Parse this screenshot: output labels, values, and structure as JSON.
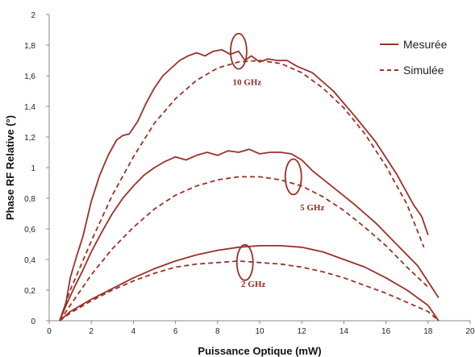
{
  "chart_data": {
    "type": "line",
    "xlabel": "Puissance Optique (mW)",
    "ylabel": "Phase RF Relative (°)",
    "xlim": [
      0,
      20
    ],
    "ylim": [
      0,
      2
    ],
    "x_ticks": [
      "0",
      "2",
      "4",
      "6",
      "8",
      "10",
      "12",
      "14",
      "16",
      "18",
      "20"
    ],
    "y_ticks": [
      "0",
      "0,2",
      "0,4",
      "0,6",
      "0,8",
      "1",
      "1,2",
      "1,4",
      "1,6",
      "1,8",
      "2"
    ],
    "legend": [
      {
        "label": "Mesurée",
        "style": "solid"
      },
      {
        "label": "Simulée",
        "style": "dashed"
      }
    ],
    "legend_position": "top-right",
    "grid": false,
    "color": "#9a3128",
    "series": [
      {
        "group": "10 GHz",
        "style": "solid",
        "points": [
          [
            0.5,
            0
          ],
          [
            0.8,
            0.12
          ],
          [
            1,
            0.28
          ],
          [
            1.3,
            0.42
          ],
          [
            1.6,
            0.55
          ],
          [
            2,
            0.78
          ],
          [
            2.4,
            0.95
          ],
          [
            2.8,
            1.08
          ],
          [
            3.2,
            1.18
          ],
          [
            3.5,
            1.21
          ],
          [
            3.8,
            1.22
          ],
          [
            4.2,
            1.3
          ],
          [
            4.6,
            1.42
          ],
          [
            5,
            1.52
          ],
          [
            5.4,
            1.6
          ],
          [
            5.8,
            1.65
          ],
          [
            6.2,
            1.7
          ],
          [
            6.6,
            1.73
          ],
          [
            7,
            1.75
          ],
          [
            7.4,
            1.73
          ],
          [
            7.8,
            1.76
          ],
          [
            8.2,
            1.77
          ],
          [
            8.6,
            1.74
          ],
          [
            9,
            1.76
          ],
          [
            9.3,
            1.7
          ],
          [
            9.6,
            1.73
          ],
          [
            10,
            1.69
          ],
          [
            10.4,
            1.71
          ],
          [
            10.8,
            1.7
          ],
          [
            11.3,
            1.7
          ],
          [
            11.8,
            1.66
          ],
          [
            12.5,
            1.62
          ],
          [
            13.5,
            1.5
          ],
          [
            14.5,
            1.34
          ],
          [
            15.5,
            1.17
          ],
          [
            16.5,
            0.96
          ],
          [
            17.3,
            0.76
          ],
          [
            17.7,
            0.68
          ],
          [
            18,
            0.56
          ]
        ]
      },
      {
        "group": "10 GHz",
        "style": "dashed",
        "points": [
          [
            0.5,
            0
          ],
          [
            1,
            0.2
          ],
          [
            2,
            0.52
          ],
          [
            3,
            0.82
          ],
          [
            4,
            1.07
          ],
          [
            5,
            1.29
          ],
          [
            6,
            1.45
          ],
          [
            7,
            1.57
          ],
          [
            8,
            1.65
          ],
          [
            9,
            1.69
          ],
          [
            10,
            1.7
          ],
          [
            11,
            1.68
          ],
          [
            12,
            1.62
          ],
          [
            13,
            1.52
          ],
          [
            14,
            1.39
          ],
          [
            15,
            1.22
          ],
          [
            16,
            1.01
          ],
          [
            17,
            0.76
          ],
          [
            17.8,
            0.48
          ]
        ]
      },
      {
        "group": "5 GHz",
        "style": "solid",
        "points": [
          [
            0.5,
            0
          ],
          [
            0.8,
            0.1
          ],
          [
            1.2,
            0.22
          ],
          [
            1.6,
            0.33
          ],
          [
            2,
            0.45
          ],
          [
            2.5,
            0.58
          ],
          [
            3,
            0.7
          ],
          [
            3.5,
            0.8
          ],
          [
            4,
            0.88
          ],
          [
            4.5,
            0.95
          ],
          [
            5,
            1
          ],
          [
            5.5,
            1.04
          ],
          [
            6,
            1.07
          ],
          [
            6.5,
            1.05
          ],
          [
            7,
            1.08
          ],
          [
            7.5,
            1.1
          ],
          [
            8,
            1.08
          ],
          [
            8.5,
            1.11
          ],
          [
            9,
            1.1
          ],
          [
            9.5,
            1.12
          ],
          [
            10,
            1.09
          ],
          [
            10.5,
            1.1
          ],
          [
            11,
            1.1
          ],
          [
            11.5,
            1.09
          ],
          [
            12,
            1.05
          ],
          [
            12.5,
            0.98
          ],
          [
            13.5,
            0.87
          ],
          [
            14.5,
            0.76
          ],
          [
            15.5,
            0.64
          ],
          [
            16.5,
            0.5
          ],
          [
            17.5,
            0.36
          ],
          [
            18.5,
            0.15
          ]
        ]
      },
      {
        "group": "5 GHz",
        "style": "dashed",
        "points": [
          [
            0.5,
            0
          ],
          [
            1,
            0.1
          ],
          [
            2,
            0.3
          ],
          [
            3,
            0.47
          ],
          [
            4,
            0.61
          ],
          [
            5,
            0.73
          ],
          [
            6,
            0.82
          ],
          [
            7,
            0.88
          ],
          [
            8,
            0.92
          ],
          [
            9,
            0.94
          ],
          [
            10,
            0.94
          ],
          [
            11,
            0.92
          ],
          [
            12,
            0.88
          ],
          [
            13,
            0.81
          ],
          [
            14,
            0.72
          ],
          [
            15,
            0.61
          ],
          [
            16,
            0.49
          ],
          [
            17,
            0.35
          ],
          [
            18,
            0.22
          ]
        ]
      },
      {
        "group": "2 GHz",
        "style": "solid",
        "points": [
          [
            0.5,
            0
          ],
          [
            1,
            0.06
          ],
          [
            2,
            0.14
          ],
          [
            3,
            0.21
          ],
          [
            4,
            0.28
          ],
          [
            5,
            0.34
          ],
          [
            6,
            0.39
          ],
          [
            7,
            0.43
          ],
          [
            8,
            0.46
          ],
          [
            9,
            0.48
          ],
          [
            10,
            0.49
          ],
          [
            11,
            0.49
          ],
          [
            12,
            0.48
          ],
          [
            13,
            0.45
          ],
          [
            14,
            0.4
          ],
          [
            15,
            0.35
          ],
          [
            16,
            0.28
          ],
          [
            17,
            0.2
          ],
          [
            18,
            0.1
          ],
          [
            18.5,
            0
          ]
        ]
      },
      {
        "group": "2 GHz",
        "style": "dashed",
        "points": [
          [
            0.5,
            0
          ],
          [
            1,
            0.05
          ],
          [
            2,
            0.13
          ],
          [
            3,
            0.2
          ],
          [
            4,
            0.26
          ],
          [
            5,
            0.31
          ],
          [
            6,
            0.35
          ],
          [
            7,
            0.37
          ],
          [
            8,
            0.38
          ],
          [
            9,
            0.39
          ],
          [
            10,
            0.38
          ],
          [
            11,
            0.37
          ],
          [
            12,
            0.35
          ],
          [
            13,
            0.32
          ],
          [
            14,
            0.28
          ],
          [
            15,
            0.23
          ],
          [
            16,
            0.18
          ],
          [
            17,
            0.12
          ],
          [
            18,
            0.06
          ],
          [
            18.5,
            0
          ]
        ]
      }
    ],
    "annotations": [
      {
        "text": "10 GHz",
        "x": 9.4,
        "y": 1.54,
        "ellipse_at": [
          9,
          1.76
        ]
      },
      {
        "text": "5 GHz",
        "x": 12.5,
        "y": 0.72,
        "ellipse_at": [
          11.6,
          0.94
        ]
      },
      {
        "text": "2 GHz",
        "x": 9.7,
        "y": 0.22,
        "ellipse_at": [
          9.3,
          0.38
        ]
      }
    ]
  }
}
